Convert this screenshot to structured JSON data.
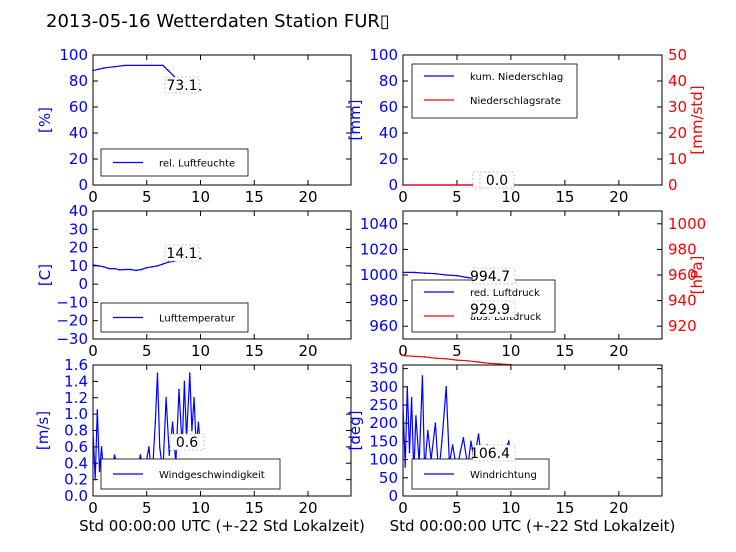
{
  "title": "2013-05-16 Wetterdaten Station FUR▯",
  "colors": {
    "left_axis": "#0000ff",
    "right_axis": "#ff0000",
    "series1": "#0000ff",
    "series2": "#ff0000"
  },
  "chart_data": [
    {
      "type": "line",
      "ylabel": "[%]",
      "xlim": [
        0,
        24
      ],
      "ylim": [
        0,
        100
      ],
      "xticks": [
        0,
        5,
        10,
        15,
        20
      ],
      "yticks": [
        0,
        20,
        40,
        60,
        80,
        100
      ],
      "legend": {
        "placement": "lower-left",
        "entries": [
          "rel. Luftfeuchte"
        ]
      },
      "annotation": "73.1",
      "series": [
        {
          "name": "rel. Luftfeuchte",
          "x": [
            0,
            0.5,
            1,
            2,
            3,
            4,
            5,
            6.5,
            7,
            7.5,
            8,
            8.5,
            9,
            9.5,
            10
          ],
          "y": [
            88,
            89,
            90,
            91,
            92,
            92,
            92,
            92,
            88,
            84,
            80,
            78,
            77,
            75,
            73.1
          ]
        }
      ]
    },
    {
      "type": "line",
      "ylabel": "[mm]",
      "ylabel_right": "[mm/std]",
      "xlim": [
        0,
        24
      ],
      "ylim": [
        0,
        100
      ],
      "ylim_right": [
        0,
        50
      ],
      "xticks": [
        0,
        5,
        10,
        15,
        20
      ],
      "yticks": [
        0,
        20,
        40,
        60,
        80,
        100
      ],
      "yticks_right": [
        0,
        10,
        20,
        30,
        40,
        50
      ],
      "legend": {
        "placement": "upper-left",
        "entries": [
          "kum. Niederschlag",
          "Niederschlagsrate"
        ]
      },
      "annotations": [
        "0.0",
        "0.0"
      ],
      "series": [
        {
          "name": "kum. Niederschlag",
          "x": [
            0,
            10
          ],
          "y": [
            0,
            0
          ]
        },
        {
          "name": "Niederschlagsrate",
          "x": [
            0,
            10
          ],
          "y": [
            0,
            0
          ]
        }
      ]
    },
    {
      "type": "line",
      "ylabel": "[C]",
      "xlim": [
        0,
        24
      ],
      "ylim": [
        -30,
        40
      ],
      "xticks": [
        0,
        5,
        10,
        15,
        20
      ],
      "yticks": [
        -30,
        -20,
        -10,
        0,
        10,
        20,
        30,
        40
      ],
      "legend": {
        "placement": "lower-left",
        "entries": [
          "Lufttemperatur"
        ]
      },
      "annotation": "14.1",
      "series": [
        {
          "name": "Lufttemperatur",
          "x": [
            0,
            0.5,
            1,
            1.5,
            2,
            2.5,
            3,
            3.5,
            4,
            4.5,
            5,
            5.5,
            6,
            6.5,
            7,
            7.5,
            8,
            8.5,
            9,
            9.5,
            10
          ],
          "y": [
            10.5,
            10,
            9.5,
            8.5,
            8.5,
            7.8,
            8,
            8,
            7.5,
            8,
            9,
            9.5,
            10,
            11,
            12,
            12.5,
            13.5,
            14,
            14,
            14.1,
            14.1
          ]
        }
      ]
    },
    {
      "type": "line",
      "ylabel_right": "[hPa]",
      "xlim": [
        0,
        24
      ],
      "ylim": [
        950,
        1050
      ],
      "ylim_right": [
        910,
        1010
      ],
      "xticks": [
        0,
        5,
        10,
        15,
        20
      ],
      "yticks": [
        960,
        980,
        1000,
        1020,
        1040
      ],
      "yticks_right": [
        920,
        940,
        960,
        980,
        1000
      ],
      "legend": {
        "placement": "lower-left",
        "entries": [
          "red. Luftdruck",
          "abs. Luftdruck"
        ]
      },
      "annotations": [
        "994.7",
        "929.9"
      ],
      "series": [
        {
          "name": "red. Luftdruck",
          "x": [
            0,
            1,
            2,
            3,
            4,
            5,
            6,
            7,
            8,
            9,
            10
          ],
          "y": [
            1002,
            1002,
            1001.5,
            1001,
            1000,
            999.5,
            998,
            997,
            996,
            995,
            994.7
          ]
        },
        {
          "name": "abs. Luftdruck",
          "x": [
            0,
            1,
            2,
            3,
            4,
            5,
            6,
            7,
            8,
            9,
            10
          ],
          "y": [
            937,
            936.5,
            936,
            935,
            934.5,
            933.5,
            933,
            932,
            931,
            930.5,
            929.9
          ]
        }
      ]
    },
    {
      "type": "line",
      "ylabel": "[m/s]",
      "xlabel": "Std 00:00:00 UTC (+-22 Std Lokalzeit)",
      "xlim": [
        0,
        24
      ],
      "ylim": [
        0,
        1.6
      ],
      "xticks": [
        0,
        5,
        10,
        15,
        20
      ],
      "yticks": [
        0.0,
        0.2,
        0.4,
        0.6,
        0.8,
        1.0,
        1.2,
        1.4,
        1.6
      ],
      "legend": {
        "placement": "lower-center",
        "entries": [
          "Windgeschwindigkeit"
        ]
      },
      "annotation": "0.6",
      "series": [
        {
          "name": "Windgeschwindigkeit",
          "x": [
            0,
            0.2,
            0.4,
            0.6,
            0.8,
            1.0,
            1.3,
            1.6,
            2.0,
            2.4,
            2.8,
            3.2,
            3.6,
            4.0,
            4.4,
            4.8,
            5.2,
            5.5,
            5.8,
            6.0,
            6.2,
            6.5,
            6.8,
            7.1,
            7.4,
            7.7,
            8.0,
            8.3,
            8.5,
            8.7,
            9.0,
            9.2,
            9.4,
            9.6,
            9.8,
            10.0
          ],
          "y": [
            0.8,
            0.2,
            1.05,
            0.3,
            0.6,
            0.2,
            0.4,
            0.2,
            0.5,
            0.3,
            0.2,
            0.4,
            0.3,
            0.2,
            0.5,
            0.3,
            0.6,
            0.2,
            0.9,
            1.5,
            0.6,
            0.3,
            1.2,
            0.5,
            0.9,
            0.4,
            1.3,
            0.6,
            1.4,
            0.7,
            1.5,
            0.8,
            1.2,
            0.6,
            0.9,
            0.6
          ]
        }
      ]
    },
    {
      "type": "line",
      "ylabel": "[deg]",
      "xlabel": "Std 00:00:00 UTC (+-22 Std Lokalzeit)",
      "xlim": [
        0,
        24
      ],
      "ylim": [
        0,
        360
      ],
      "xticks": [
        0,
        5,
        10,
        15,
        20
      ],
      "yticks": [
        0,
        50,
        100,
        150,
        200,
        250,
        300,
        350
      ],
      "legend": {
        "placement": "lower-center",
        "entries": [
          "Windrichtung"
        ]
      },
      "annotation": "106.4",
      "series": [
        {
          "name": "Windrichtung",
          "x": [
            0,
            0.2,
            0.4,
            0.6,
            0.8,
            1.0,
            1.2,
            1.5,
            1.8,
            2.0,
            2.3,
            2.6,
            3.0,
            3.3,
            3.6,
            4.0,
            4.3,
            4.6,
            5.0,
            5.3,
            5.6,
            6.0,
            6.3,
            6.6,
            7.0,
            7.4,
            7.8,
            8.2,
            8.6,
            9.0,
            9.4,
            9.8,
            10.0
          ],
          "y": [
            250,
            80,
            300,
            120,
            270,
            60,
            220,
            90,
            330,
            70,
            180,
            100,
            200,
            60,
            150,
            300,
            90,
            140,
            70,
            120,
            160,
            80,
            150,
            100,
            170,
            70,
            140,
            90,
            130,
            80,
            120,
            150,
            106.4
          ]
        }
      ]
    }
  ]
}
